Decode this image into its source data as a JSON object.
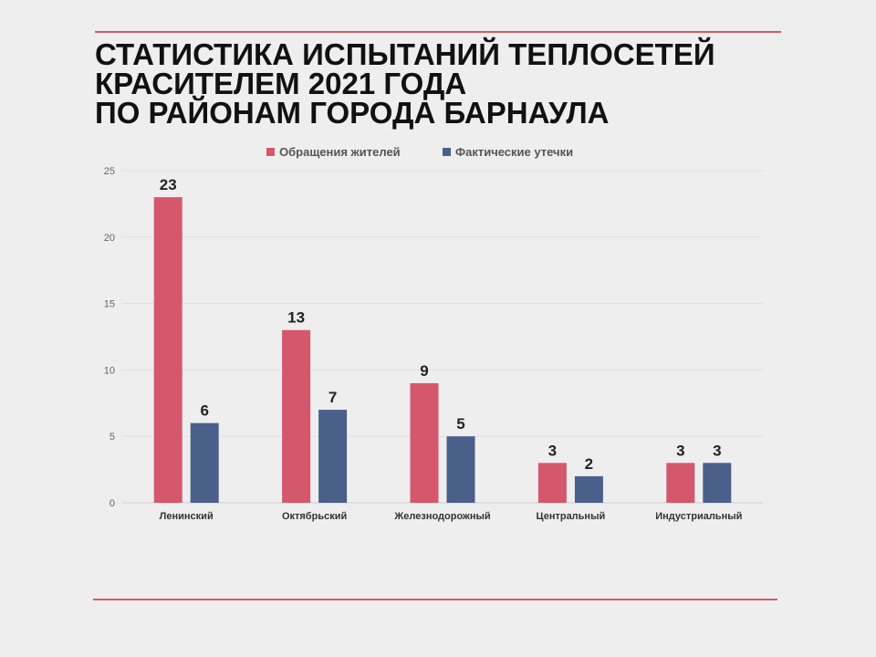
{
  "title_lines": [
    "СТАТИСТИКА ИСПЫТАНИЙ ТЕПЛОСЕТЕЙ",
    "КРАСИТЕЛЕМ 2021 ГОДА",
    "ПО РАЙОНАМ ГОРОДА БАРНАУЛА"
  ],
  "colors": {
    "accent_line": "#d45a6a",
    "series_1": "#d5576b",
    "series_2": "#4a5f8a",
    "grid": "#dddddd"
  },
  "chart_data": {
    "type": "bar",
    "title": "СТАТИСТИКА ИСПЫТАНИЙ ТЕПЛОСЕТЕЙ КРАСИТЕЛЕМ 2021 ГОДА ПО РАЙОНАМ ГОРОДА БАРНАУЛА",
    "categories": [
      "Ленинский",
      "Октябрьский",
      "Железнодорожный",
      "Центральный",
      "Индустриальный"
    ],
    "series": [
      {
        "name": "Обращения жителей",
        "values": [
          23,
          13,
          9,
          3,
          3
        ]
      },
      {
        "name": "Фактические утечки",
        "values": [
          6,
          7,
          5,
          2,
          3
        ]
      }
    ],
    "ylim": [
      0,
      25
    ],
    "yticks": [
      "0",
      "5",
      "10",
      "15",
      "20",
      "25"
    ],
    "xlabel": "",
    "ylabel": "",
    "legend": "top",
    "grid": true,
    "data_labels": true
  }
}
